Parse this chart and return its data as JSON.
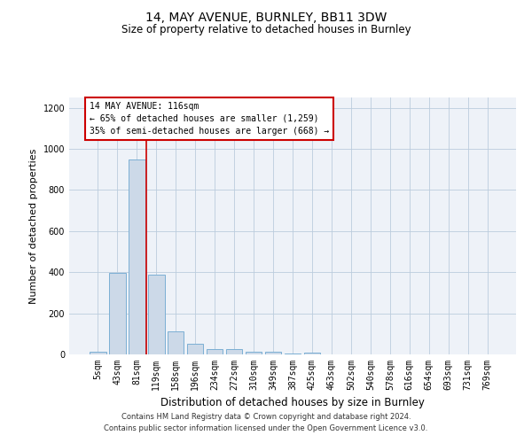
{
  "title_line1": "14, MAY AVENUE, BURNLEY, BB11 3DW",
  "title_line2": "Size of property relative to detached houses in Burnley",
  "xlabel": "Distribution of detached houses by size in Burnley",
  "ylabel": "Number of detached properties",
  "footer_line1": "Contains HM Land Registry data © Crown copyright and database right 2024.",
  "footer_line2": "Contains public sector information licensed under the Open Government Licence v3.0.",
  "annotation_line1": "14 MAY AVENUE: 116sqm",
  "annotation_line2": "← 65% of detached houses are smaller (1,259)",
  "annotation_line3": "35% of semi-detached houses are larger (668) →",
  "bar_labels": [
    "5sqm",
    "43sqm",
    "81sqm",
    "119sqm",
    "158sqm",
    "196sqm",
    "234sqm",
    "272sqm",
    "310sqm",
    "349sqm",
    "387sqm",
    "425sqm",
    "463sqm",
    "502sqm",
    "540sqm",
    "578sqm",
    "616sqm",
    "654sqm",
    "693sqm",
    "731sqm",
    "769sqm"
  ],
  "bar_values": [
    15,
    395,
    950,
    390,
    110,
    50,
    25,
    25,
    15,
    15,
    5,
    10,
    0,
    0,
    0,
    0,
    0,
    0,
    0,
    0,
    0
  ],
  "bar_color": "#ccd9e8",
  "bar_edgecolor": "#7bafd4",
  "grid_color": "#bbccdd",
  "background_color": "#eef2f8",
  "red_line_x": 2.5,
  "annotation_box_color": "#cc0000",
  "ylim": [
    0,
    1250
  ],
  "yticks": [
    0,
    200,
    400,
    600,
    800,
    1000,
    1200
  ],
  "title1_fontsize": 10,
  "title2_fontsize": 8.5,
  "ylabel_fontsize": 8,
  "xlabel_fontsize": 8.5,
  "tick_fontsize": 7,
  "annotation_fontsize": 7,
  "footer_fontsize": 6
}
